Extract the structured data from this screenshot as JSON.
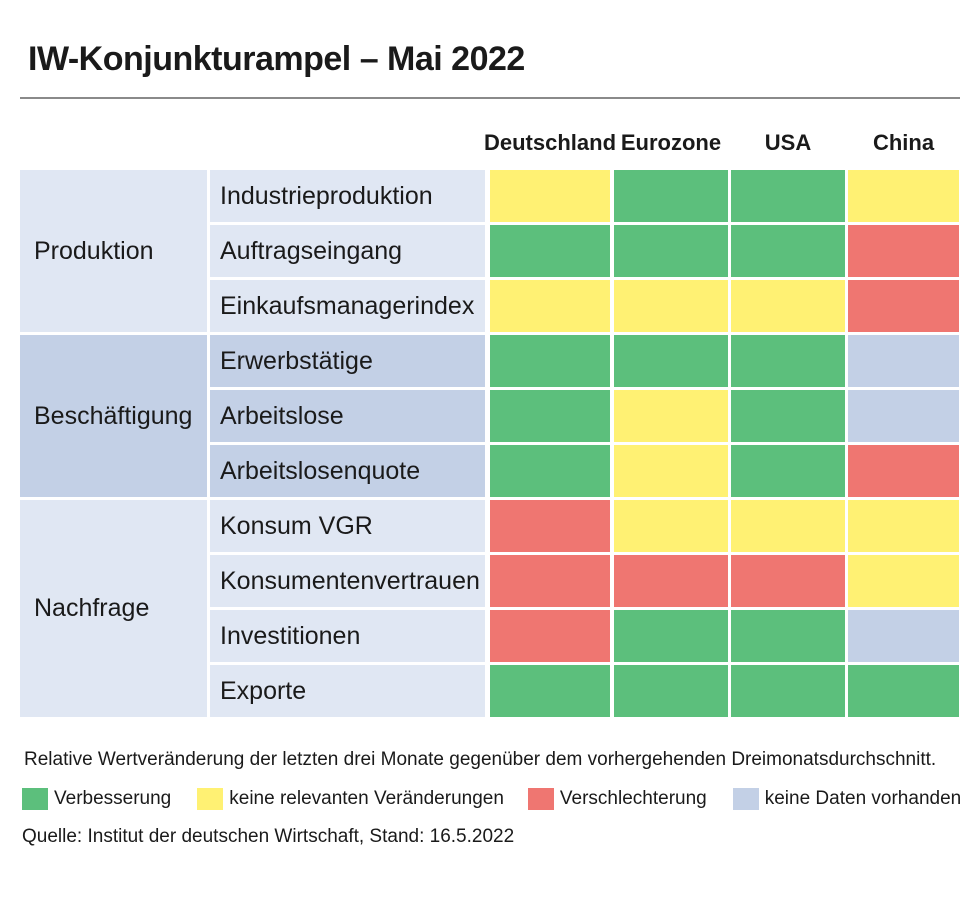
{
  "title": "IW-Konjunkturampel – Mai 2022",
  "colors": {
    "green": "#5cbf7c",
    "yellow": "#fff173",
    "red": "#ef7671",
    "nodata": "#c3d0e6",
    "group_light": "#e0e7f3",
    "group_dark": "#c3d0e6"
  },
  "chart_data": {
    "type": "table",
    "columns": [
      "Deutschland",
      "Eurozone",
      "USA",
      "China"
    ],
    "groups": [
      {
        "label": "Produktion",
        "rows": [
          {
            "label": "Industrieproduktion",
            "values": [
              "yellow",
              "green",
              "green",
              "yellow"
            ]
          },
          {
            "label": "Auftragseingang",
            "values": [
              "green",
              "green",
              "green",
              "red"
            ]
          },
          {
            "label": "Einkaufsmanagerindex",
            "values": [
              "yellow",
              "yellow",
              "yellow",
              "red"
            ]
          }
        ]
      },
      {
        "label": "Beschäftigung",
        "rows": [
          {
            "label": "Erwerbstätige",
            "values": [
              "green",
              "green",
              "green",
              "nodata"
            ]
          },
          {
            "label": "Arbeitslose",
            "values": [
              "green",
              "yellow",
              "green",
              "nodata"
            ]
          },
          {
            "label": "Arbeitslosenquote",
            "values": [
              "green",
              "yellow",
              "green",
              "red"
            ]
          }
        ]
      },
      {
        "label": "Nachfrage",
        "rows": [
          {
            "label": "Konsum VGR",
            "values": [
              "red",
              "yellow",
              "yellow",
              "yellow"
            ]
          },
          {
            "label": "Konsumentenvertrauen",
            "values": [
              "red",
              "red",
              "red",
              "yellow"
            ]
          },
          {
            "label": "Investitionen",
            "values": [
              "red",
              "green",
              "green",
              "nodata"
            ]
          },
          {
            "label": "Exporte",
            "values": [
              "green",
              "green",
              "green",
              "green"
            ]
          }
        ]
      }
    ]
  },
  "footnote": "Relative Wertveränderung der letzten drei Monate gegenüber dem vorhergehenden Dreimonatsdurchschnitt.",
  "legend": [
    {
      "key": "green",
      "label": "Verbesserung"
    },
    {
      "key": "yellow",
      "label": "keine relevanten Veränderungen"
    },
    {
      "key": "red",
      "label": "Verschlechterung"
    },
    {
      "key": "nodata",
      "label": "keine Daten vorhanden"
    }
  ],
  "source": "Quelle: Institut der deutschen Wirtschaft, Stand: 16.5.2022"
}
